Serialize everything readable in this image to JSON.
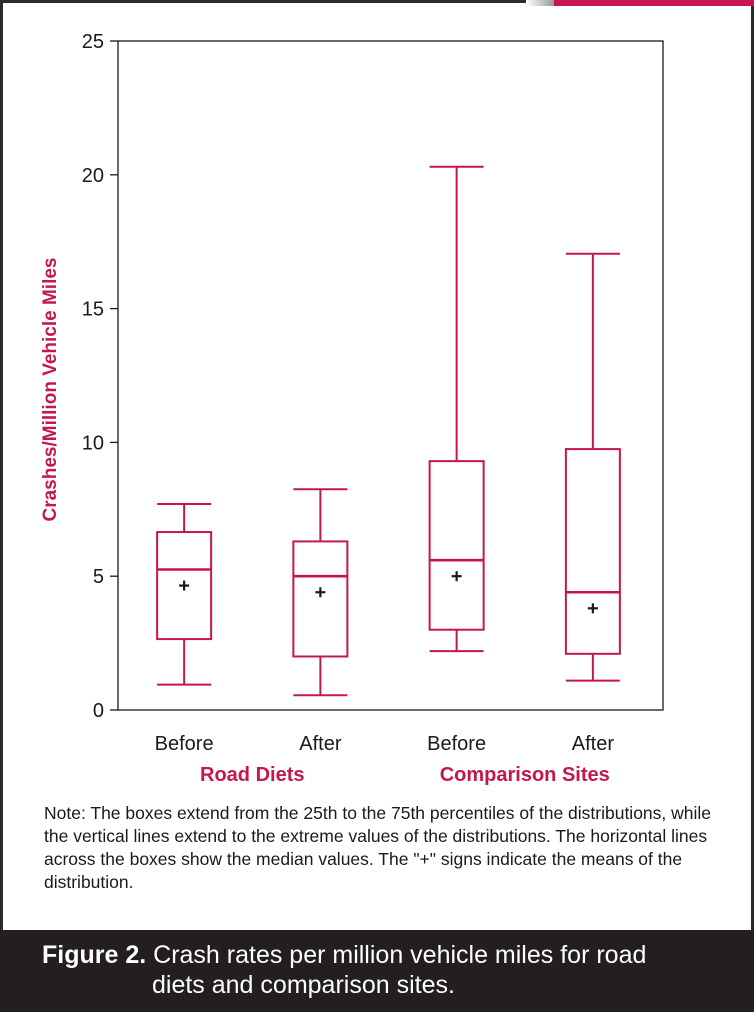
{
  "chart_data": {
    "type": "boxplot",
    "ylabel": "Crashes/Million Vehicle Miles",
    "ylim": [
      0,
      25
    ],
    "y_ticks": [
      "0",
      "5",
      "10",
      "15",
      "20",
      "25"
    ],
    "categories": [
      "Before",
      "After",
      "Before",
      "After"
    ],
    "groups": [
      {
        "label": "Road Diets",
        "categories": [
          0,
          1
        ]
      },
      {
        "label": "Comparison Sites",
        "categories": [
          2,
          3
        ]
      }
    ],
    "boxes": [
      {
        "category": "Before",
        "group": "Road Diets",
        "min": 0.95,
        "q1": 2.65,
        "median": 5.25,
        "q3": 6.65,
        "max": 7.7,
        "mean": 4.65
      },
      {
        "category": "After",
        "group": "Road Diets",
        "min": 0.55,
        "q1": 2.0,
        "median": 5.0,
        "q3": 6.3,
        "max": 8.25,
        "mean": 4.4
      },
      {
        "category": "Before",
        "group": "Comparison Sites",
        "min": 2.2,
        "q1": 3.0,
        "median": 5.6,
        "q3": 9.3,
        "max": 20.3,
        "mean": 5.0
      },
      {
        "category": "After",
        "group": "Comparison Sites",
        "min": 1.1,
        "q1": 2.1,
        "median": 4.4,
        "q3": 9.75,
        "max": 17.05,
        "mean": 3.8
      }
    ],
    "mean_marker": "+",
    "grid": false,
    "colors": {
      "box": "#c5174c",
      "mean_marker": "#1a1a1a",
      "axis": "#1a1a1a",
      "ylabel": "#c5174c",
      "group_label": "#c5174c"
    }
  },
  "note": "Note: The boxes extend from the 25th to the 75th percentiles of the distributions, while the vertical lines extend to the extreme values of the distributions. The horizontal lines across the boxes show the median values. The \"+\" signs indicate the means of the distribution.",
  "caption": {
    "label": "Figure 2.",
    "text_line1": " Crash rates per million vehicle miles for road",
    "text_line2": "diets and comparison sites."
  }
}
